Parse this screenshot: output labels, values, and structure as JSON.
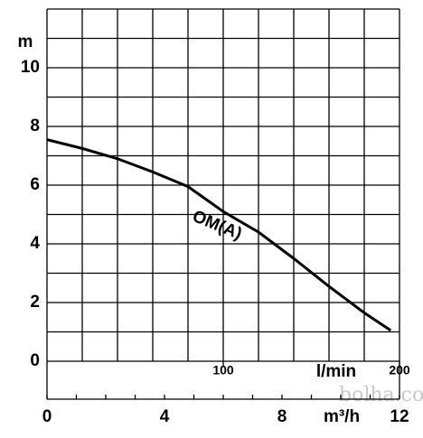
{
  "chart_data": {
    "type": "line",
    "y_label": "m",
    "x_label": "l/min",
    "x2_label": "m³/h",
    "x": [
      0,
      20,
      40,
      60,
      80,
      100,
      120,
      140,
      160,
      180,
      195
    ],
    "series": [
      {
        "name": "OM(A)",
        "color": "#000000",
        "values": [
          7.55,
          7.25,
          6.9,
          6.45,
          5.95,
          5.1,
          4.4,
          3.5,
          2.55,
          1.65,
          1.05
        ]
      }
    ],
    "xlim": [
      0,
      200
    ],
    "xticks": [
      100,
      200
    ],
    "xminor": [
      0,
      20,
      40,
      60,
      80,
      100,
      120,
      140,
      160,
      180,
      200
    ],
    "x2lim": [
      0,
      12
    ],
    "x2ticks": [
      0,
      4,
      8,
      12
    ],
    "x2minor": [
      0,
      1,
      2,
      3,
      4,
      5,
      6,
      7,
      8,
      9,
      10,
      11,
      12
    ],
    "ylim": [
      0,
      12
    ],
    "yticks": [
      0,
      2,
      4,
      6,
      8,
      10
    ],
    "yminor": [
      0,
      1,
      2,
      3,
      4,
      5,
      6,
      7,
      8,
      9,
      10,
      11,
      12
    ],
    "grid": true,
    "watermark": "bolha.com"
  }
}
